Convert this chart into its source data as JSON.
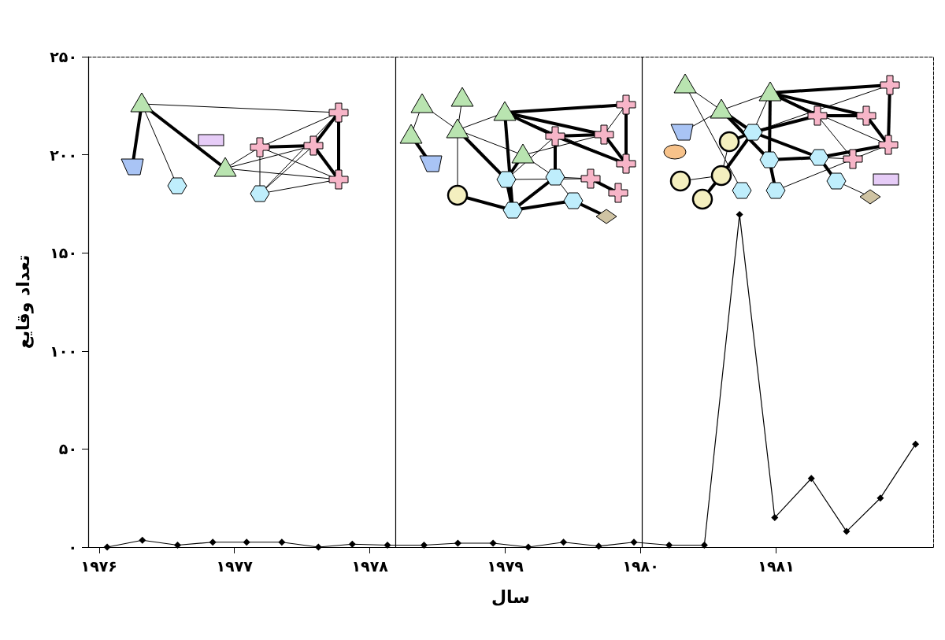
{
  "chart_data": {
    "type": "line",
    "xlabel": "سال",
    "ylabel": "تعداد وقایع",
    "x": [
      1976.06,
      1976.32,
      1976.58,
      1976.84,
      1977.09,
      1977.35,
      1977.62,
      1977.87,
      1978.13,
      1978.4,
      1978.65,
      1978.91,
      1979.17,
      1979.43,
      1979.69,
      1979.95,
      1980.21,
      1980.47,
      1980.73,
      1980.99,
      1981.26,
      1981.52,
      1981.77,
      1982.03
    ],
    "series": [
      {
        "color": "#000000",
        "values": [
          0,
          3.5,
          1,
          2.5,
          2.5,
          2.5,
          0,
          1.5,
          1,
          1,
          2,
          2,
          0,
          2.5,
          0.5,
          2.5,
          1,
          1,
          169.5,
          15,
          35,
          8,
          25,
          52.5
        ]
      }
    ],
    "xlim": [
      1975.92,
      1982.16
    ],
    "xticks": [
      {
        "value": 1976,
        "label": "۱۹۷۶"
      },
      {
        "value": 1977,
        "label": "۱۹۷۷"
      },
      {
        "value": 1978,
        "label": "۱۹۷۸"
      },
      {
        "value": 1979,
        "label": "۱۹۷۹"
      },
      {
        "value": 1980,
        "label": "۱۹۸۰"
      },
      {
        "value": 1981,
        "label": "۱۹۸۱"
      }
    ],
    "ylim": [
      0,
      250
    ],
    "yticks": [
      {
        "value": 0,
        "label": "۰"
      },
      {
        "value": 50,
        "label": "۵۰"
      },
      {
        "value": 100,
        "label": "۱۰۰"
      },
      {
        "value": 150,
        "label": "۱۵۰"
      },
      {
        "value": 200,
        "label": "۲۰۰"
      },
      {
        "value": 250,
        "label": "۲۵۰"
      }
    ],
    "ref_lines": [
      {
        "axis": "x",
        "value": 1978.19,
        "color": "#000000"
      },
      {
        "axis": "x",
        "value": 1980.01,
        "color": "#000000"
      }
    ],
    "marker": "diamond",
    "line_style": "solid",
    "grid": false
  }
}
